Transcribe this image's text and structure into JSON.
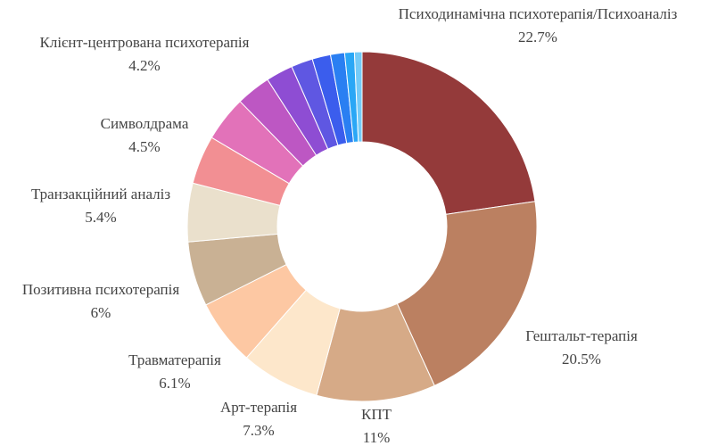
{
  "chart_data": {
    "type": "donut",
    "categories": [
      "Психодинамічна психотерапія/Психоаналіз",
      "Гештальт-терапія",
      "КПТ",
      "Арт-терапія",
      "Травматерапія",
      "Позитивна психотерапія",
      "Транзакційний аналіз",
      "Символдрама",
      "Клієнт-центрована психотерапія",
      null,
      null,
      null,
      null,
      null,
      null,
      null
    ],
    "values": [
      22.7,
      20.5,
      11,
      7.3,
      6.1,
      6,
      5.4,
      4.5,
      4.2,
      3.2,
      2.5,
      2,
      1.7,
      1.3,
      0.9,
      0.7
    ],
    "value_labels": [
      "22.7%",
      "20.5%",
      "11%",
      "7.3%",
      "6.1%",
      "6%",
      "5.4%",
      "4.5%",
      "4.2%",
      null,
      null,
      null,
      null,
      null,
      null,
      null
    ],
    "colors": [
      "#943a3a",
      "#bb8061",
      "#d6aa87",
      "#fde7cb",
      "#fdc8a3",
      "#c9b194",
      "#eae0cc",
      "#f28f93",
      "#e272b9",
      "#bd57c3",
      "#8e4dd3",
      "#5f57e2",
      "#3b5ded",
      "#2a7ff2",
      "#2aa7f6",
      "#74cbf8"
    ]
  }
}
